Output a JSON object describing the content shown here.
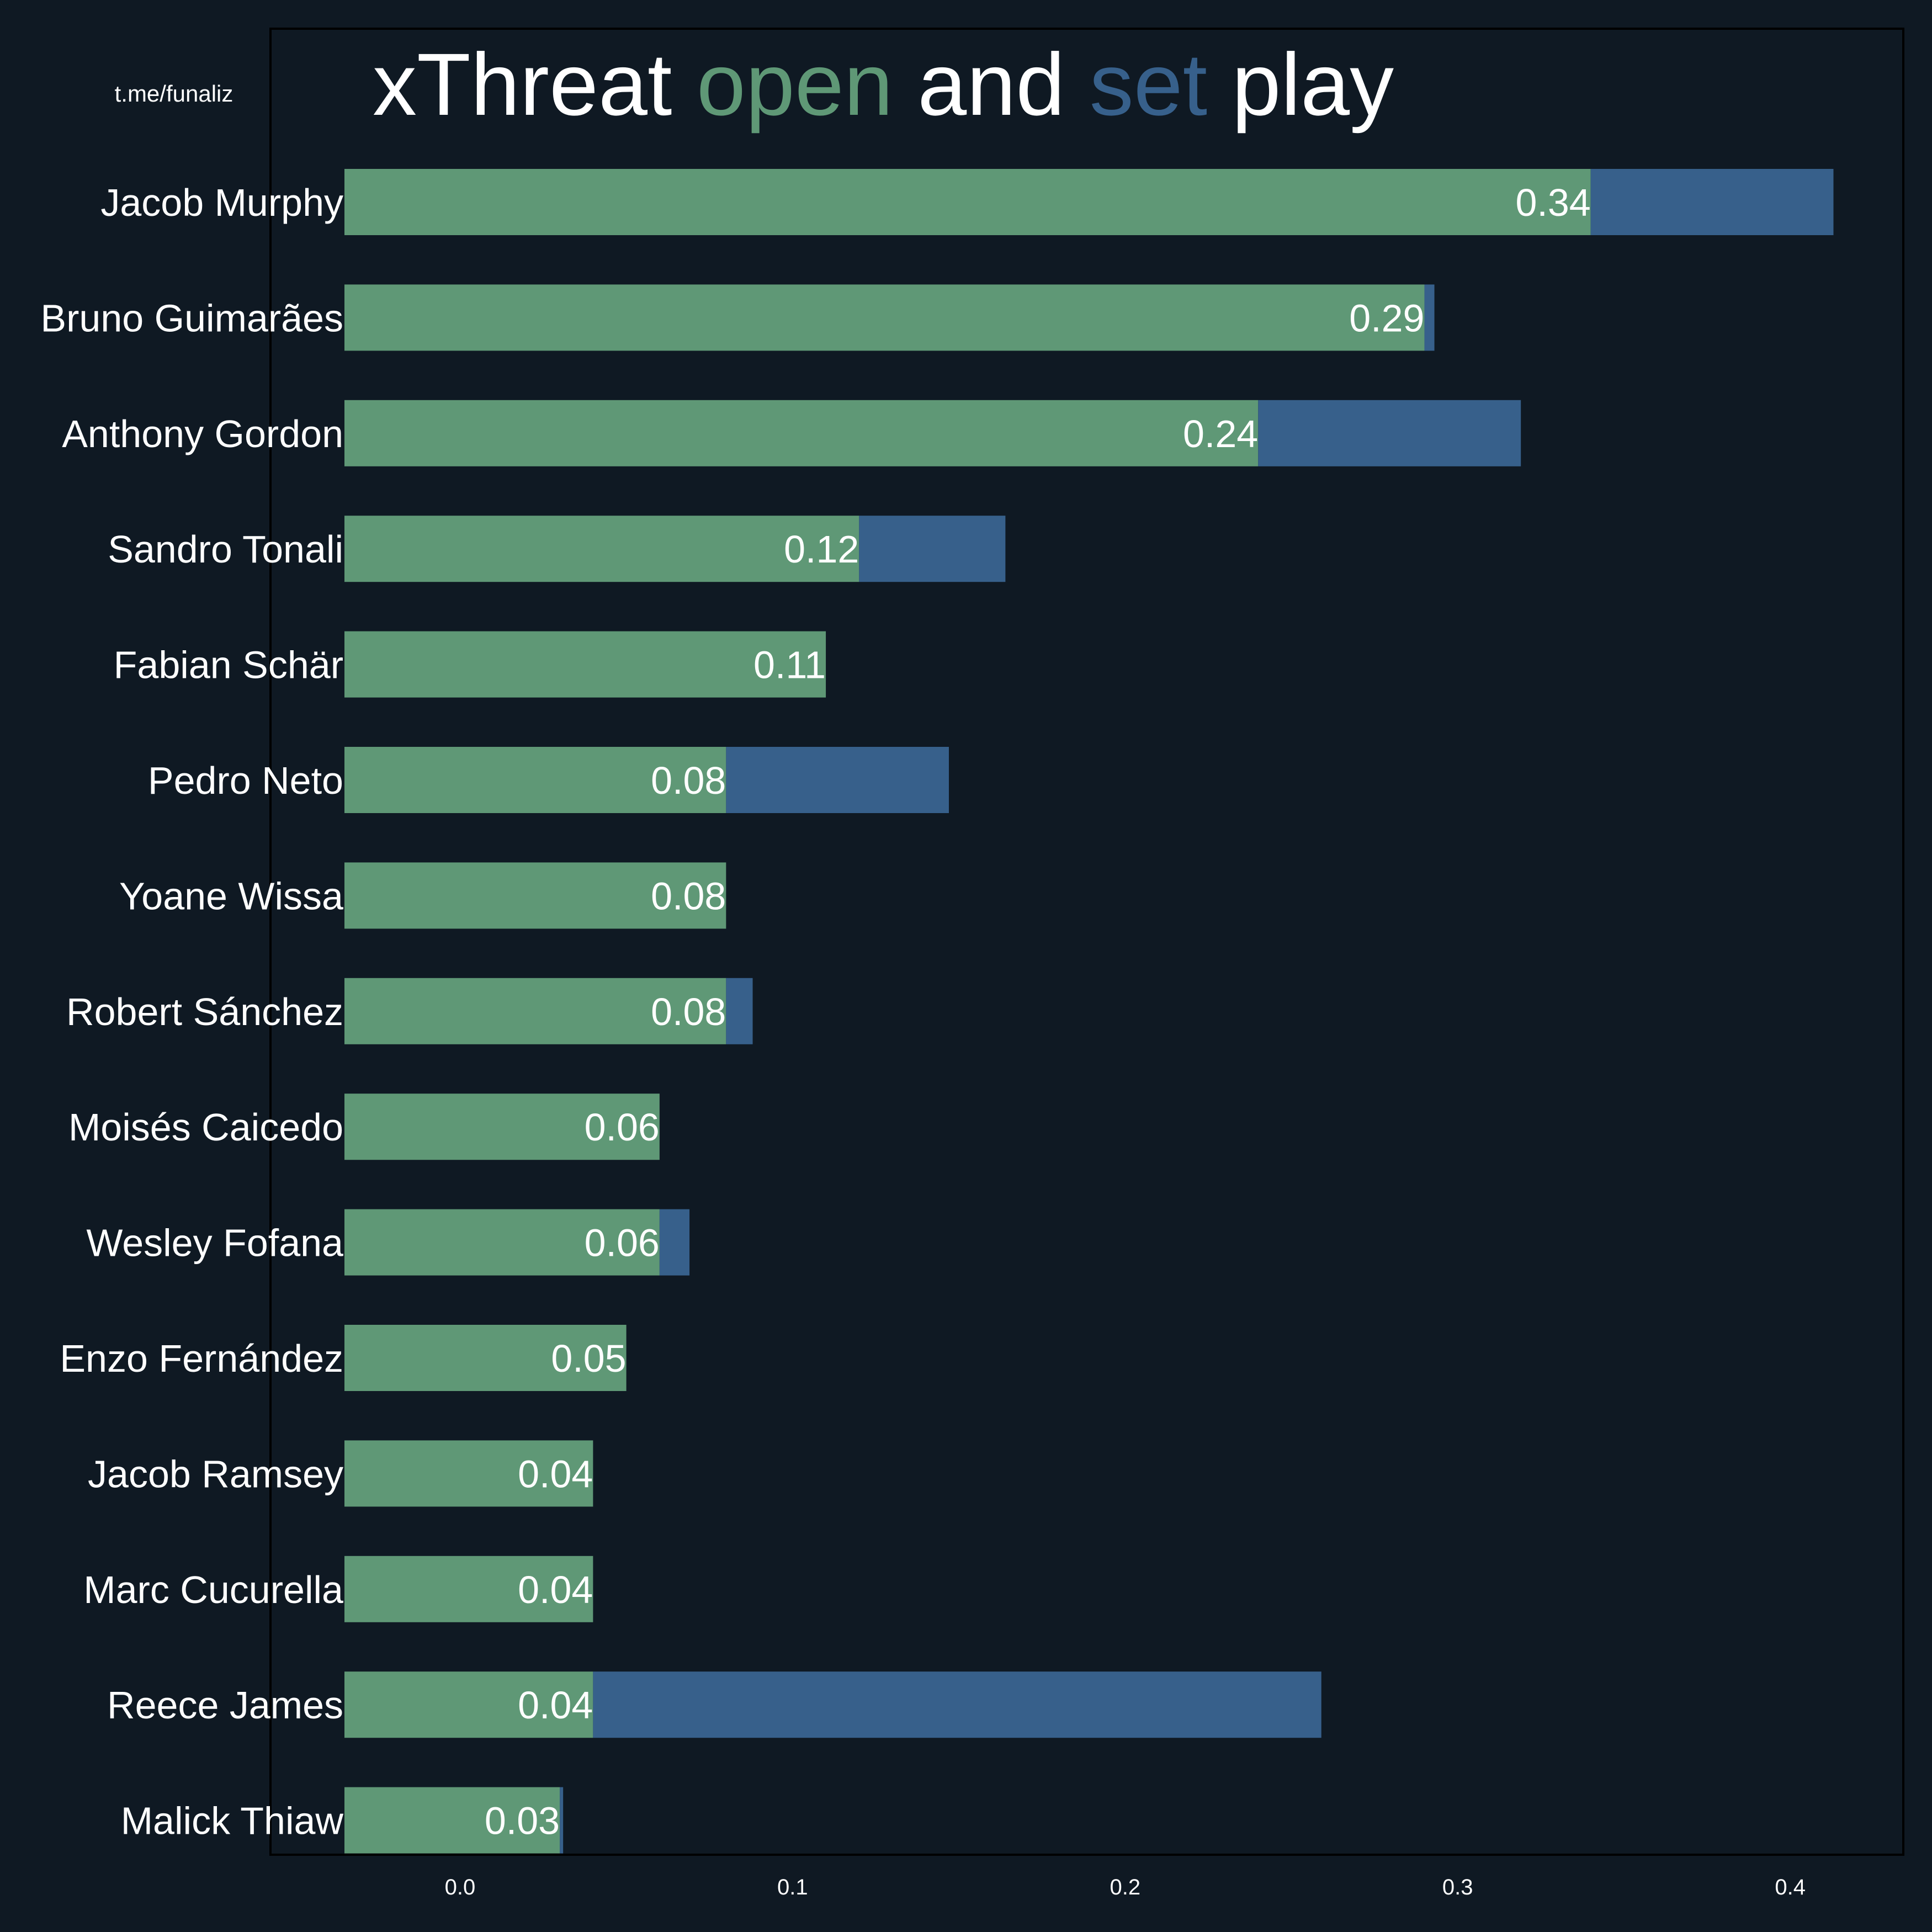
{
  "watermark": "t.me/funaliz",
  "title": {
    "parts": [
      {
        "text": "xThreat ",
        "color": "#ffffff"
      },
      {
        "text": "open",
        "color": "#5f9876"
      },
      {
        "text": " and ",
        "color": "#ffffff"
      },
      {
        "text": "set",
        "color": "#37608b"
      },
      {
        "text": " play",
        "color": "#ffffff"
      }
    ]
  },
  "colors": {
    "background": "#0f1923",
    "open_play": "#5f9876",
    "set_play": "#37608b",
    "frame": "#000000",
    "text": "#ffffff"
  },
  "chart_data": {
    "type": "bar",
    "orientation": "horizontal",
    "stacked": true,
    "categories": [
      "Jacob Murphy",
      "Bruno Guimarães",
      "Anthony Gordon",
      "Sandro Tonali",
      "Fabian Schär",
      "Pedro Neto",
      "Yoane Wissa",
      "Robert Sánchez",
      "Moisés Caicedo",
      "Wesley Fofana",
      "Enzo Fernández",
      "Jacob Ramsey",
      "Marc Cucurella",
      "Reece James",
      "Malick Thiaw"
    ],
    "series": [
      {
        "name": "open",
        "values": [
          0.34,
          0.29,
          0.24,
          0.12,
          0.11,
          0.08,
          0.08,
          0.08,
          0.06,
          0.06,
          0.05,
          0.04,
          0.04,
          0.04,
          0.03
        ]
      },
      {
        "name": "set",
        "values": [
          0.073,
          0.003,
          0.079,
          0.044,
          0.0,
          0.067,
          0.0,
          0.008,
          0.0,
          0.009,
          0.0,
          0.0,
          0.0,
          0.219,
          0.001
        ]
      }
    ],
    "data_labels": [
      "0.34",
      "0.29",
      "0.24",
      "0.12",
      "0.11",
      "0.08",
      "0.08",
      "0.08",
      "0.06",
      "0.06",
      "0.05",
      "0.04",
      "0.04",
      "0.04",
      "0.03"
    ],
    "xticks": [
      0.0,
      0.1,
      0.2,
      0.3,
      0.4
    ],
    "xtick_labels": [
      "0.0",
      "0.1",
      "0.2",
      "0.3",
      "0.4"
    ],
    "xlim": [
      -0.057,
      0.434
    ],
    "xlabel": "",
    "ylabel": "",
    "grid": false,
    "legend": "none"
  }
}
